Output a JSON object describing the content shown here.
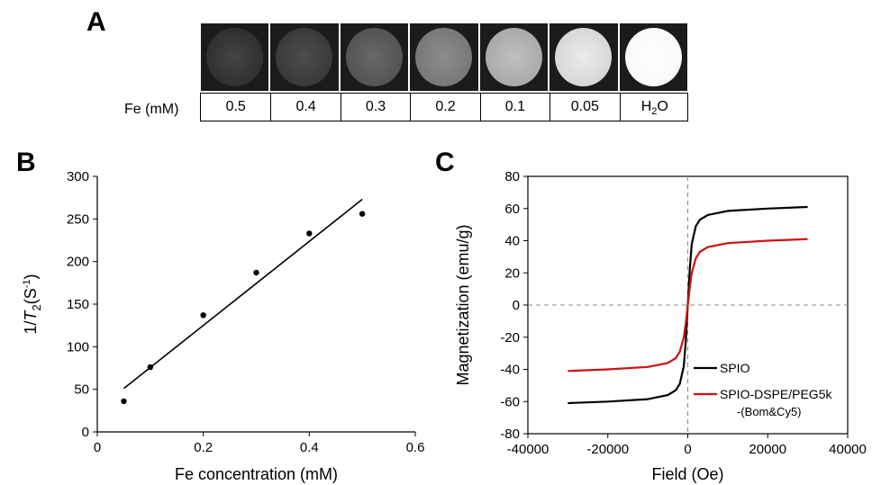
{
  "panel_a": {
    "letter": "A",
    "row_label": "Fe (mM)",
    "samples": [
      {
        "label": "0.5",
        "intensity": 0.08
      },
      {
        "label": "0.4",
        "intensity": 0.12
      },
      {
        "label": "0.3",
        "intensity": 0.24
      },
      {
        "label": "0.2",
        "intensity": 0.4
      },
      {
        "label": "0.1",
        "intensity": 0.62
      },
      {
        "label": "0.05",
        "intensity": 0.82
      },
      {
        "label": "H",
        "label_sub": "2",
        "label_tail": "O",
        "intensity": 0.97
      }
    ]
  },
  "panel_b": {
    "letter": "B",
    "chart_data": {
      "type": "scatter",
      "xlabel": "Fe concentration (mM)",
      "ylabel_prefix": "1/",
      "ylabel_italic": "T",
      "ylabel_sub": "2",
      "ylabel_unit_open": "(S",
      "ylabel_sup": "-1",
      "ylabel_unit_close": ")",
      "xlim": [
        0,
        0.6
      ],
      "ylim": [
        0,
        300
      ],
      "x_ticks": [
        0,
        0.2,
        0.4,
        0.6
      ],
      "x_tick_labels": [
        "0",
        "0.2",
        "0.4",
        "0.6"
      ],
      "y_ticks": [
        0,
        50,
        100,
        150,
        200,
        250,
        300
      ],
      "y_tick_labels": [
        "0",
        "50",
        "100",
        "150",
        "200",
        "250",
        "300"
      ],
      "points": [
        {
          "x": 0.05,
          "y": 36
        },
        {
          "x": 0.1,
          "y": 76
        },
        {
          "x": 0.2,
          "y": 137
        },
        {
          "x": 0.3,
          "y": 187
        },
        {
          "x": 0.4,
          "y": 233
        },
        {
          "x": 0.5,
          "y": 256
        }
      ],
      "fit_line": {
        "x": [
          0.05,
          0.5
        ],
        "y": [
          51,
          273
        ]
      },
      "grid": false
    }
  },
  "panel_c": {
    "letter": "C",
    "chart_data": {
      "type": "line",
      "xlabel": "Field (Oe)",
      "ylabel": "Magnetization (emu/g)",
      "xlim": [
        -40000,
        40000
      ],
      "ylim": [
        -80,
        80
      ],
      "x_ticks": [
        -40000,
        -20000,
        0,
        20000,
        40000
      ],
      "x_tick_labels": [
        "-40000",
        "-20000",
        "0",
        "20000",
        "40000"
      ],
      "y_ticks": [
        -80,
        -60,
        -40,
        -20,
        0,
        20,
        40,
        60,
        80
      ],
      "y_tick_labels": [
        "-80",
        "-60",
        "-40",
        "-20",
        "0",
        "20",
        "40",
        "60",
        "80"
      ],
      "grid": false,
      "legend_position": "lower-right",
      "series": [
        {
          "name": "SPIO",
          "color": "#000000",
          "x": [
            -30000,
            -20000,
            -10000,
            -5000,
            -3000,
            -2000,
            -1000,
            -500,
            0,
            500,
            1000,
            2000,
            3000,
            5000,
            10000,
            20000,
            30000
          ],
          "y": [
            -61,
            -60,
            -58.5,
            -56,
            -53,
            -49,
            -38,
            -22,
            0,
            22,
            38,
            49,
            53,
            56,
            58.5,
            60,
            61
          ]
        },
        {
          "name": "SPIO-DSPE/PEG5k\n-(Bom&Cy5)",
          "color": "#cc1111",
          "x": [
            -30000,
            -20000,
            -10000,
            -5000,
            -3000,
            -2000,
            -1000,
            -500,
            0,
            500,
            1000,
            2000,
            3000,
            5000,
            10000,
            20000,
            30000
          ],
          "y": [
            -41,
            -40,
            -38.5,
            -36,
            -33,
            -29,
            -20,
            -11,
            0,
            11,
            20,
            29,
            33,
            36,
            38.5,
            40,
            41
          ]
        }
      ],
      "legend_entries": [
        {
          "line1": "SPIO",
          "line2": ""
        },
        {
          "line1": "SPIO-DSPE/PEG5k",
          "line2": "-(Bom&Cy5)"
        }
      ]
    }
  }
}
